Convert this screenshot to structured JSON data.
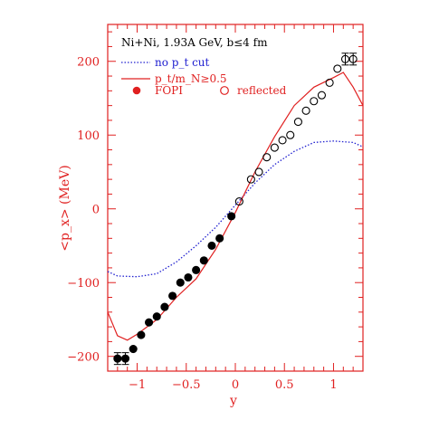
{
  "colors": {
    "axis": "#e02020",
    "model_cut": "#e02020",
    "model_nocut": "#2020d0",
    "points": "#000000",
    "title_text": "#000000"
  },
  "chart_data": {
    "type": "scatter",
    "title": "Ni+Ni, 1.93A GeV, b≤4 fm",
    "xlabel": "y",
    "ylabel": "<p_x> (MeV)",
    "xlim": [
      -1.3,
      1.3
    ],
    "ylim": [
      -220,
      250
    ],
    "grid": false,
    "legend_position": "top-left",
    "x_ticks": [
      -1,
      -0.5,
      0,
      0.5,
      1
    ],
    "x_tick_labels": [
      "−1",
      "−0.5",
      "0",
      "0.5",
      "1"
    ],
    "y_ticks": [
      -200,
      -100,
      0,
      100,
      200
    ],
    "y_tick_labels": [
      "−200",
      "−100",
      "0",
      "100",
      "200"
    ],
    "legend": [
      {
        "marker": "dotted-line",
        "label": "no p_t cut"
      },
      {
        "marker": "solid-line",
        "label": "p_t/m_N≥0.5"
      },
      {
        "marker": "filled-circle",
        "label": "FOPI"
      },
      {
        "marker": "open-circle",
        "label": "reflected"
      }
    ],
    "series": [
      {
        "name": "no p_t cut",
        "style": "dotted",
        "x": [
          -1.3,
          -1.2,
          -1.0,
          -0.8,
          -0.6,
          -0.4,
          -0.2,
          0.0,
          0.2,
          0.4,
          0.6,
          0.8,
          1.0,
          1.2,
          1.3
        ],
        "y": [
          -85,
          -91,
          -92,
          -88,
          -72,
          -50,
          -25,
          5,
          35,
          60,
          78,
          90,
          92,
          90,
          84
        ]
      },
      {
        "name": "p_t/m_N≥0.5",
        "style": "solid",
        "x": [
          -1.3,
          -1.2,
          -1.1,
          -1.0,
          -0.9,
          -0.8,
          -0.6,
          -0.4,
          -0.2,
          0.0,
          0.2,
          0.4,
          0.6,
          0.8,
          1.0,
          1.1,
          1.2,
          1.3
        ],
        "y": [
          -140,
          -172,
          -178,
          -170,
          -160,
          -150,
          -120,
          -95,
          -55,
          -5,
          50,
          98,
          140,
          165,
          178,
          185,
          165,
          140
        ]
      },
      {
        "name": "FOPI",
        "marker": "filled",
        "x": [
          -1.2,
          -1.12,
          -1.04,
          -0.96,
          -0.88,
          -0.8,
          -0.72,
          -0.64,
          -0.56,
          -0.48,
          -0.4,
          -0.32,
          -0.24,
          -0.16,
          -0.04
        ],
        "y": [
          -203,
          -203,
          -190,
          -171,
          -154,
          -146,
          -133,
          -118,
          -100,
          -93,
          -83,
          -70,
          -50,
          -40,
          -10
        ],
        "error_bars": [
          8,
          8,
          0,
          0,
          0,
          0,
          0,
          0,
          0,
          0,
          0,
          0,
          0,
          0,
          0
        ]
      },
      {
        "name": "reflected",
        "marker": "open",
        "x": [
          0.04,
          0.16,
          0.24,
          0.32,
          0.4,
          0.48,
          0.56,
          0.64,
          0.72,
          0.8,
          0.88,
          0.96,
          1.04,
          1.12,
          1.2
        ],
        "y": [
          10,
          40,
          50,
          70,
          83,
          93,
          100,
          118,
          133,
          146,
          154,
          171,
          190,
          203,
          203
        ],
        "error_bars": [
          0,
          0,
          0,
          0,
          0,
          0,
          0,
          0,
          0,
          0,
          0,
          0,
          0,
          8,
          8
        ]
      }
    ]
  }
}
